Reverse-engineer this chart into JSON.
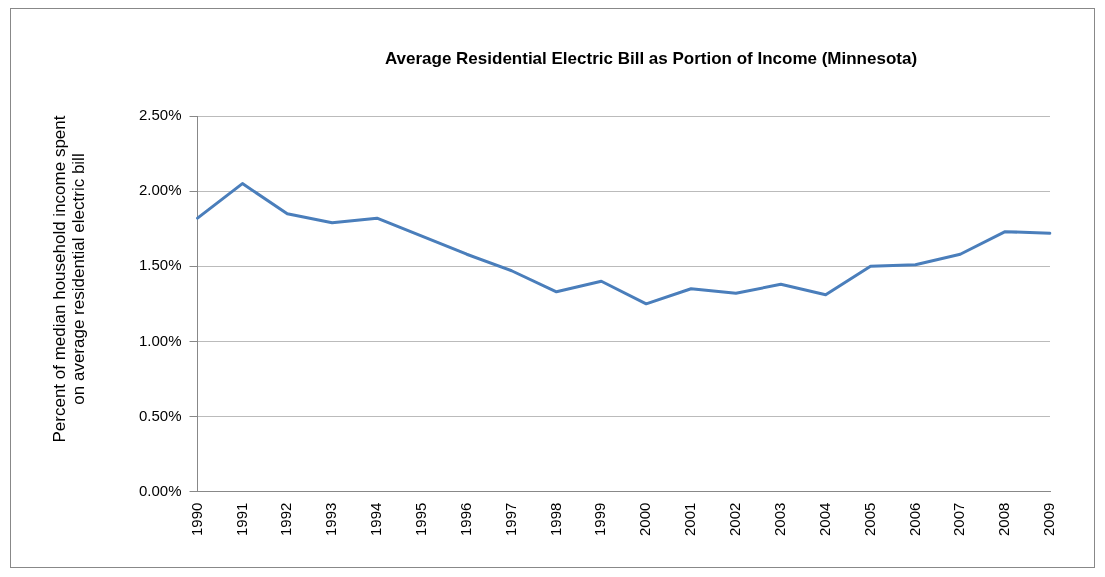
{
  "chart_data": {
    "type": "line",
    "title": "Average Residential Electric Bill as Portion of Income (Minnesota)",
    "ylabel": "Percent of median household income spent on average residential electric bill",
    "categories": [
      "1990",
      "1991",
      "1992",
      "1993",
      "1994",
      "1995",
      "1996",
      "1997",
      "1998",
      "1999",
      "2000",
      "2001",
      "2002",
      "2003",
      "2004",
      "2005",
      "2006",
      "2007",
      "2008",
      "2009"
    ],
    "series": [
      {
        "color": "#4a7ebb",
        "values": [
          1.82,
          2.05,
          1.85,
          1.79,
          1.82,
          1.7,
          1.58,
          1.47,
          1.33,
          1.4,
          1.25,
          1.35,
          1.32,
          1.38,
          1.31,
          1.5,
          1.51,
          1.58,
          1.73,
          1.72
        ]
      }
    ],
    "ylim": [
      0,
      2.5
    ],
    "yticks": [
      {
        "value": 0,
        "label": "0.00%"
      },
      {
        "value": 0.5,
        "label": "0.50%"
      },
      {
        "value": 1,
        "label": "1.00%"
      },
      {
        "value": 1.5,
        "label": "1.50%"
      },
      {
        "value": 2,
        "label": "2.00%"
      },
      {
        "value": 2.5,
        "label": "2.50%"
      }
    ],
    "grid": "y",
    "legend": false,
    "marker": "none",
    "line_style": "solid"
  }
}
